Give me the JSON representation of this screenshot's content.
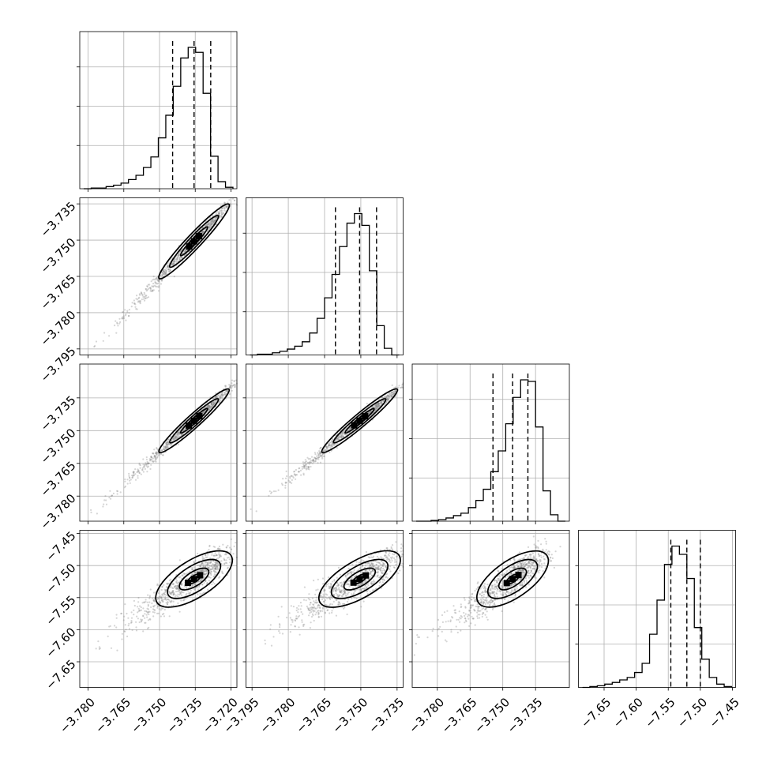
{
  "chart_data": {
    "type": "corner",
    "params": 4,
    "ticks": {
      "p0_col": [
        "−3.780",
        "−3.765",
        "−3.750",
        "−3.735",
        "−3.720"
      ],
      "p1_col": [
        "−3.795",
        "−3.780",
        "−3.765",
        "−3.750",
        "−3.735"
      ],
      "p2_col": [
        "−3.780",
        "−3.765",
        "−3.750",
        "−3.735"
      ],
      "p3_col": [
        "−7.65",
        "−7.60",
        "−7.55",
        "−7.50",
        "−7.45"
      ],
      "p1_row": [
        "−3.735",
        "−3.750",
        "−3.765",
        "−3.780",
        "−3.795"
      ],
      "p2_row": [
        "−3.735",
        "−3.750",
        "−3.765",
        "−3.780"
      ],
      "p3_row": [
        "−7.45",
        "−7.50",
        "−7.55",
        "−7.60",
        "−7.65"
      ]
    },
    "ranges": {
      "p0": [
        -3.7835,
        -3.7175
      ],
      "p1": [
        -3.7975,
        -3.7325
      ],
      "p2": [
        -3.7915,
        -3.7195
      ],
      "p3": [
        -7.69,
        -7.445
      ]
    },
    "tick_values": {
      "p0": [
        -3.78,
        -3.765,
        -3.75,
        -3.735,
        -3.72
      ],
      "p1": [
        -3.795,
        -3.78,
        -3.765,
        -3.75,
        -3.735
      ],
      "p2": [
        -3.78,
        -3.765,
        -3.75,
        -3.735
      ],
      "p3": [
        -7.65,
        -7.6,
        -7.55,
        -7.5,
        -7.45
      ]
    },
    "quantiles": {
      "p0": [
        -3.7445,
        -3.7355,
        -3.7285
      ],
      "p1": [
        -3.7605,
        -3.7505,
        -3.7435
      ],
      "p2": [
        -3.7545,
        -3.7455,
        -3.7385
      ],
      "p3": [
        -7.546,
        -7.521,
        -7.5
      ]
    },
    "histograms": {
      "p0": [
        0,
        1,
        1,
        3,
        5,
        8,
        13,
        19,
        30,
        45,
        72,
        104,
        145,
        185,
        200,
        193,
        135,
        46,
        10,
        2
      ],
      "p1": [
        0,
        1,
        1,
        3,
        5,
        8,
        12,
        18,
        30,
        50,
        78,
        110,
        148,
        180,
        193,
        177,
        115,
        40,
        9,
        0
      ],
      "p2": [
        0,
        0,
        1,
        2,
        4,
        7,
        10,
        17,
        26,
        40,
        62,
        88,
        122,
        155,
        177,
        175,
        118,
        38,
        8,
        0
      ],
      "p3": [
        0,
        1,
        2,
        4,
        6,
        9,
        12,
        18,
        29,
        64,
        105,
        148,
        170,
        160,
        131,
        72,
        34,
        12,
        4,
        1
      ]
    },
    "grid": true
  }
}
